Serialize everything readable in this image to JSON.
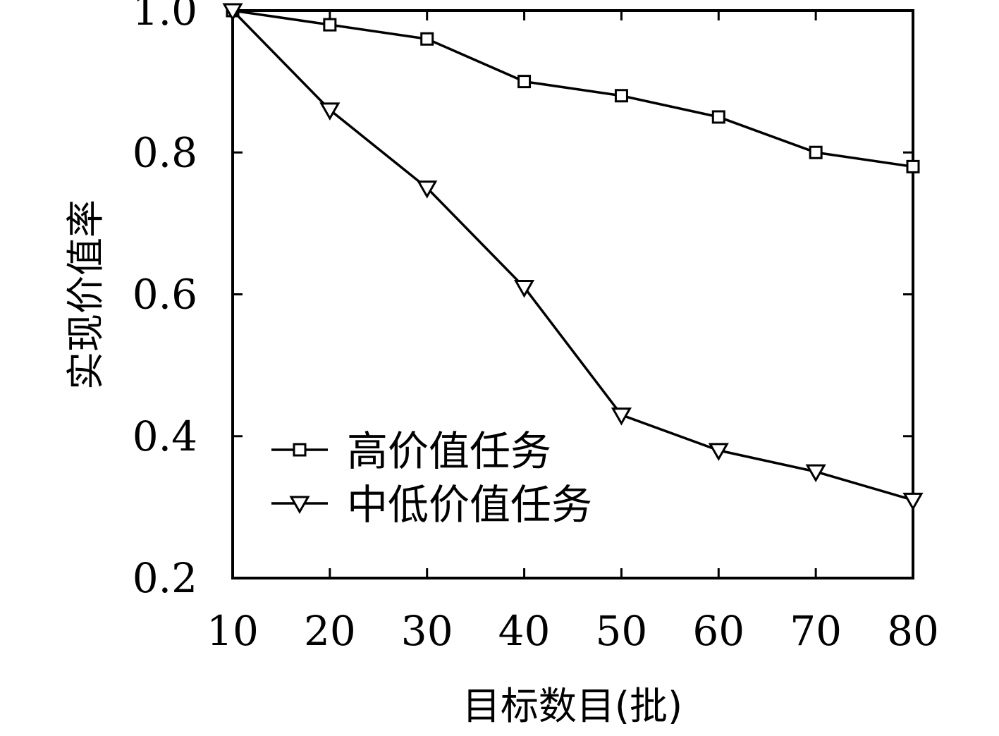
{
  "chart_data": {
    "type": "line",
    "title": "",
    "xlabel": "目标数目(批)",
    "ylabel": "实现价值率",
    "x": [
      10,
      20,
      30,
      40,
      50,
      60,
      70,
      80
    ],
    "xlim": [
      10,
      80
    ],
    "ylim": [
      0.2,
      1.0
    ],
    "x_ticks": [
      "10",
      "20",
      "30",
      "40",
      "50",
      "60",
      "70",
      "80"
    ],
    "y_ticks": [
      "0.2",
      "0.4",
      "0.6",
      "0.8",
      "1.0"
    ],
    "grid": false,
    "legend_position": "lower-left",
    "line_color": "#000000",
    "series": [
      {
        "name": "高价值任务",
        "marker": "square",
        "values": [
          1.0,
          0.98,
          0.96,
          0.9,
          0.88,
          0.85,
          0.8,
          0.78
        ]
      },
      {
        "name": "中低价值任务",
        "marker": "triangle-down",
        "values": [
          1.0,
          0.86,
          0.75,
          0.61,
          0.43,
          0.38,
          0.35,
          0.31
        ]
      }
    ]
  }
}
